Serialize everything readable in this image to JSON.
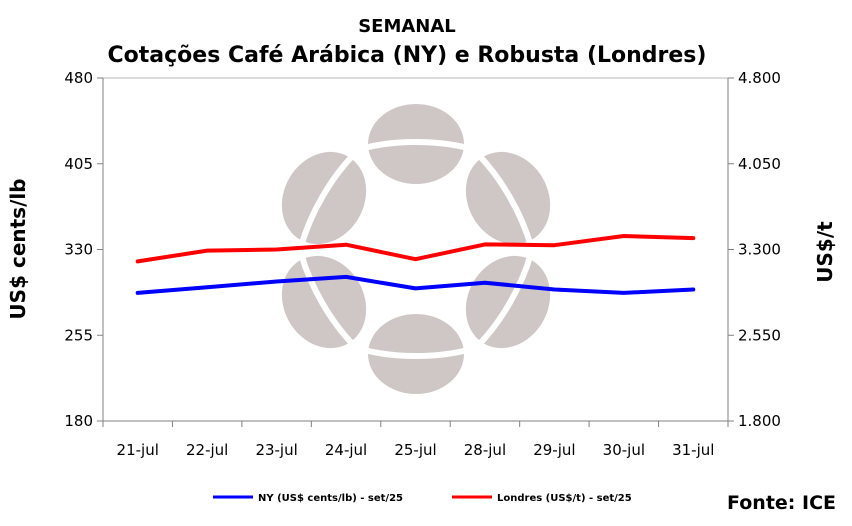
{
  "chart_data": {
    "type": "line",
    "title": "SEMANAL",
    "subtitle": "Cotações Café Arábica (NY) e Robusta (Londres)",
    "categories": [
      "21-jul",
      "22-jul",
      "23-jul",
      "24-jul",
      "25-jul",
      "28-jul",
      "29-jul",
      "30-jul",
      "31-jul"
    ],
    "ylabel_left": "US$ cents/lb",
    "ylabel_right": "US$/t",
    "ylim_left": [
      180,
      480
    ],
    "ylim_right": [
      1800,
      4800
    ],
    "yticks_left": [
      180,
      255,
      330,
      405,
      480
    ],
    "yticks_left_labels": [
      "180",
      "255",
      "330",
      "405",
      "480"
    ],
    "yticks_right": [
      1800,
      2550,
      3300,
      4050,
      4800
    ],
    "yticks_right_labels": [
      "1.800",
      "2.550",
      "3.300",
      "4.050",
      "4.800"
    ],
    "grid": false,
    "legend_position": "bottom",
    "series": [
      {
        "name": "NY (US$ cents/lb) - set/25",
        "axis": "left",
        "color": "#0000ff",
        "values": [
          292,
          297,
          302,
          306,
          296,
          301,
          295,
          292,
          295
        ]
      },
      {
        "name": "Londres (US$/t) - set/25",
        "axis": "right",
        "color": "#ff0000",
        "values": [
          3196,
          3290,
          3300,
          3342,
          3215,
          3345,
          3338,
          3418,
          3400
        ]
      }
    ],
    "source": "Fonte: ICE"
  }
}
